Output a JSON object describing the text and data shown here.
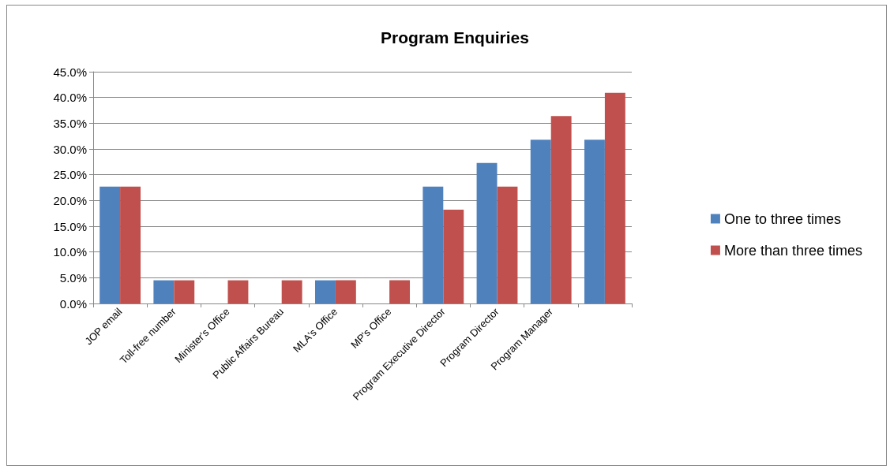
{
  "chart_data": {
    "type": "bar",
    "title": "Program Enquiries",
    "categories": [
      "JOP email",
      "Toll-free number",
      "Minister's Office",
      "Public Affairs Bureau",
      "MLA's Office",
      "MP's Office",
      "Program Executive Director",
      "Program Director",
      "Program Manager",
      null
    ],
    "series": [
      {
        "name": "One to three times",
        "color": "#4f81bd",
        "values": [
          22.7,
          4.5,
          0,
          0,
          4.5,
          0,
          22.7,
          27.3,
          31.8,
          31.8
        ]
      },
      {
        "name": "More than three times",
        "color": "#c0504d",
        "values": [
          22.7,
          4.5,
          4.5,
          4.5,
          4.5,
          4.5,
          18.2,
          22.7,
          36.4,
          40.9
        ]
      }
    ],
    "ylim": [
      0,
      45
    ],
    "yticks": [
      {
        "value": 0,
        "label": "0.0%"
      },
      {
        "value": 5,
        "label": "5.0%"
      },
      {
        "value": 10,
        "label": "10.0%"
      },
      {
        "value": 15,
        "label": "15.0%"
      },
      {
        "value": 20,
        "label": "20.0%"
      },
      {
        "value": 25,
        "label": "25.0%"
      },
      {
        "value": 30,
        "label": "30.0%"
      },
      {
        "value": 35,
        "label": "35.0%"
      },
      {
        "value": 40,
        "label": "40.0%"
      },
      {
        "value": 45,
        "label": "45.0%"
      }
    ],
    "grid": "y",
    "legend": "right"
  }
}
